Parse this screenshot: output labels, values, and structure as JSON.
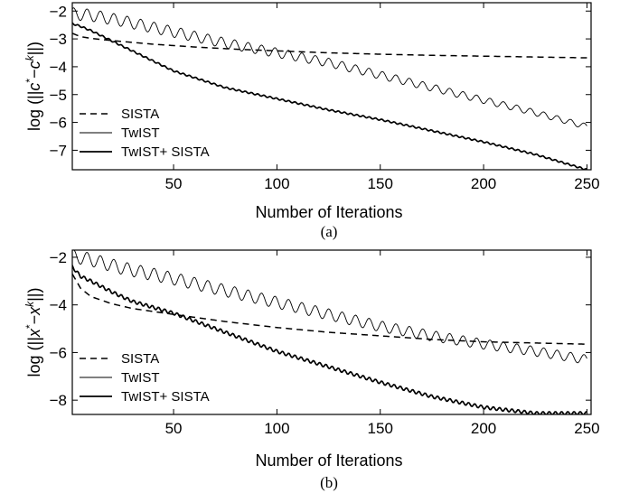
{
  "chart_data": [
    {
      "type": "line",
      "caption": "(a)",
      "xlabel": "Number of Iterations",
      "ylabel_parts": [
        "log (||",
        "c",
        "*",
        "−",
        "c",
        "k",
        "||)"
      ],
      "xlim": [
        1,
        252
      ],
      "ylim": [
        -7.7,
        -1.7
      ],
      "xticks": [
        50,
        100,
        150,
        200,
        250
      ],
      "yticks": [
        -2,
        -3,
        -4,
        -5,
        -6,
        -7
      ],
      "ytick_labels": [
        "−2",
        "−3",
        "−4",
        "−5",
        "−6",
        "−7"
      ],
      "grid": false,
      "legend_position": "bottom-left",
      "series": [
        {
          "name": "SISTA",
          "style": "dashed",
          "stroke_width": 1.5,
          "osc_amp": 0,
          "osc_period": 0,
          "osc_decay": 0,
          "x": [
            1,
            5,
            10,
            20,
            40,
            60,
            80,
            100,
            125,
            150,
            175,
            200,
            225,
            250
          ],
          "y": [
            -2.8,
            -2.92,
            -2.98,
            -3.06,
            -3.19,
            -3.29,
            -3.37,
            -3.43,
            -3.5,
            -3.55,
            -3.59,
            -3.62,
            -3.65,
            -3.68
          ]
        },
        {
          "name": "TwIST",
          "style": "solid",
          "stroke_width": 0.9,
          "osc_amp": 0.22,
          "osc_period": 6.5,
          "osc_decay": 0.55,
          "x": [
            1,
            10,
            25,
            50,
            75,
            100,
            125,
            150,
            175,
            200,
            225,
            250
          ],
          "y": [
            -2.1,
            -2.15,
            -2.35,
            -2.75,
            -3.15,
            -3.5,
            -3.85,
            -4.3,
            -4.75,
            -5.2,
            -5.65,
            -6.15
          ]
        },
        {
          "name": "TwIST+ SISTA",
          "style": "solid",
          "stroke_width": 1.7,
          "osc_amp": 0.03,
          "osc_period": 3,
          "osc_decay": 0,
          "x": [
            1,
            5,
            10,
            25,
            50,
            75,
            100,
            125,
            150,
            175,
            200,
            225,
            250
          ],
          "y": [
            -2.45,
            -2.55,
            -2.7,
            -3.25,
            -4.15,
            -4.75,
            -5.15,
            -5.55,
            -5.9,
            -6.3,
            -6.7,
            -7.15,
            -7.7
          ]
        }
      ]
    },
    {
      "type": "line",
      "caption": "(b)",
      "xlabel": "Number of Iterations",
      "ylabel_parts": [
        "log (||",
        "x",
        "*",
        "−",
        "x",
        "k",
        "||)"
      ],
      "xlim": [
        1,
        252
      ],
      "ylim": [
        -8.6,
        -1.7
      ],
      "xticks": [
        50,
        100,
        150,
        200,
        250
      ],
      "yticks": [
        -2,
        -4,
        -6,
        -8
      ],
      "ytick_labels": [
        "−2",
        "−4",
        "−6",
        "−8"
      ],
      "grid": false,
      "legend_position": "bottom-left",
      "series": [
        {
          "name": "SISTA",
          "style": "dashed",
          "stroke_width": 1.5,
          "osc_amp": 0,
          "osc_period": 0,
          "osc_decay": 0,
          "x": [
            1,
            5,
            10,
            20,
            30,
            50,
            75,
            100,
            125,
            150,
            175,
            200,
            225,
            250
          ],
          "y": [
            -2.7,
            -3.3,
            -3.65,
            -3.95,
            -4.15,
            -4.4,
            -4.7,
            -4.95,
            -5.15,
            -5.3,
            -5.45,
            -5.55,
            -5.6,
            -5.65
          ]
        },
        {
          "name": "TwIST",
          "style": "solid",
          "stroke_width": 0.9,
          "osc_amp": 0.28,
          "osc_period": 6.5,
          "osc_decay": 0.3,
          "x": [
            1,
            10,
            25,
            50,
            75,
            100,
            125,
            150,
            175,
            200,
            225,
            250
          ],
          "y": [
            -1.95,
            -2.1,
            -2.45,
            -2.9,
            -3.4,
            -3.9,
            -4.4,
            -4.9,
            -5.3,
            -5.65,
            -5.95,
            -6.3
          ]
        },
        {
          "name": "TwIST+ SISTA",
          "style": "solid",
          "stroke_width": 1.7,
          "osc_amp": 0.07,
          "osc_period": 3,
          "osc_decay": 0,
          "x": [
            1,
            5,
            10,
            20,
            30,
            50,
            75,
            100,
            125,
            150,
            175,
            200,
            225,
            250
          ],
          "y": [
            -2.4,
            -2.8,
            -3.0,
            -3.45,
            -3.85,
            -4.35,
            -5.15,
            -5.95,
            -6.6,
            -7.25,
            -7.85,
            -8.3,
            -8.55,
            -8.55
          ]
        }
      ]
    }
  ]
}
